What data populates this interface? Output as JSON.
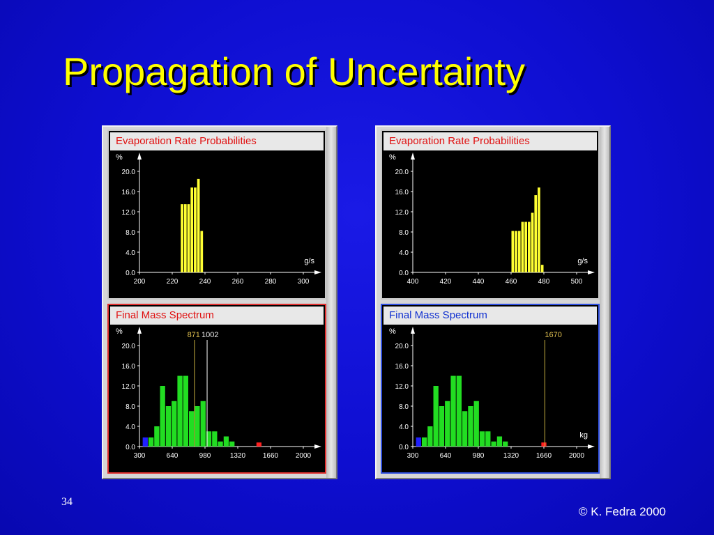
{
  "slide": {
    "title": "Propagation of Uncertainty",
    "page_number": "34",
    "copyright": "© K. Fedra 2000"
  },
  "colors": {
    "background": "#0e0ed0",
    "title": "#ffff00",
    "evaporation_bar": "#ffff33",
    "mass_bar": "#22dd22",
    "low_marker": "#2020ff",
    "high_marker": "#ff2020",
    "marker_line_yellow": "#c8b040",
    "marker_line_white": "#ffffff"
  },
  "chart_data": [
    {
      "type": "bar",
      "panel": "left-top",
      "title": "Evaporation Rate Probabilities",
      "ylabel": "%",
      "xlabel": "g/s",
      "xlim": [
        200,
        300
      ],
      "ylim": [
        0,
        20
      ],
      "x_ticks": [
        "200",
        "220",
        "240",
        "260",
        "280",
        "300"
      ],
      "y_ticks": [
        "0.0",
        "4.0",
        "8.0",
        "12.0",
        "16.0",
        "20.0"
      ],
      "bin_width": 2,
      "bins": [
        {
          "x": 226,
          "value": 13.5
        },
        {
          "x": 228,
          "value": 13.5
        },
        {
          "x": 230,
          "value": 13.5
        },
        {
          "x": 232,
          "value": 16.8
        },
        {
          "x": 234,
          "value": 16.8
        },
        {
          "x": 236,
          "value": 18.5
        },
        {
          "x": 238,
          "value": 8.2
        }
      ],
      "markers": []
    },
    {
      "type": "bar",
      "panel": "left-bottom",
      "title": "Final Mass Spectrum",
      "ylabel": "%",
      "xlabel": "",
      "xlim": [
        300,
        2000
      ],
      "ylim": [
        0,
        20
      ],
      "x_ticks": [
        "300",
        "640",
        "980",
        "1320",
        "1660",
        "2000"
      ],
      "y_ticks": [
        "0.0",
        "4.0",
        "8.0",
        "12.0",
        "16.0",
        "20.0"
      ],
      "bin_width": 60,
      "bins": [
        {
          "x": 360,
          "value": 1.8,
          "color": "low"
        },
        {
          "x": 420,
          "value": 1.8
        },
        {
          "x": 480,
          "value": 4.0
        },
        {
          "x": 540,
          "value": 12.0
        },
        {
          "x": 600,
          "value": 8.0
        },
        {
          "x": 660,
          "value": 9.0
        },
        {
          "x": 720,
          "value": 14.0
        },
        {
          "x": 780,
          "value": 14.0
        },
        {
          "x": 840,
          "value": 7.0
        },
        {
          "x": 900,
          "value": 8.0
        },
        {
          "x": 960,
          "value": 9.0
        },
        {
          "x": 1020,
          "value": 3.0
        },
        {
          "x": 1080,
          "value": 3.0
        },
        {
          "x": 1140,
          "value": 1.0
        },
        {
          "x": 1200,
          "value": 2.0
        },
        {
          "x": 1260,
          "value": 1.0
        },
        {
          "x": 1540,
          "value": 0.8,
          "color": "high"
        }
      ],
      "markers": [
        {
          "x": 871,
          "label": "871",
          "color": "yellow"
        },
        {
          "x": 1002,
          "label": "1002",
          "color": "white"
        }
      ]
    },
    {
      "type": "bar",
      "panel": "right-top",
      "title": "Evaporation Rate Probabilities",
      "ylabel": "%",
      "xlabel": "g/s",
      "xlim": [
        400,
        500
      ],
      "ylim": [
        0,
        20
      ],
      "x_ticks": [
        "400",
        "420",
        "440",
        "460",
        "480",
        "500"
      ],
      "y_ticks": [
        "0.0",
        "4.0",
        "8.0",
        "12.0",
        "16.0",
        "20.0"
      ],
      "bin_width": 2,
      "bins": [
        {
          "x": 461,
          "value": 8.2
        },
        {
          "x": 463,
          "value": 8.2
        },
        {
          "x": 465,
          "value": 8.2
        },
        {
          "x": 467,
          "value": 10.0
        },
        {
          "x": 469,
          "value": 10.0
        },
        {
          "x": 471,
          "value": 10.0
        },
        {
          "x": 473,
          "value": 11.8
        },
        {
          "x": 475,
          "value": 15.3
        },
        {
          "x": 477,
          "value": 16.8
        },
        {
          "x": 479,
          "value": 1.5
        }
      ],
      "markers": []
    },
    {
      "type": "bar",
      "panel": "right-bottom",
      "title": "Final Mass Spectrum",
      "ylabel": "%",
      "xlabel": "kg",
      "xlim": [
        300,
        2000
      ],
      "ylim": [
        0,
        20
      ],
      "x_ticks": [
        "300",
        "640",
        "980",
        "1320",
        "1660",
        "2000"
      ],
      "y_ticks": [
        "0.0",
        "4.0",
        "8.0",
        "12.0",
        "16.0",
        "20.0"
      ],
      "bin_width": 60,
      "bins": [
        {
          "x": 360,
          "value": 1.8,
          "color": "low"
        },
        {
          "x": 420,
          "value": 1.8
        },
        {
          "x": 480,
          "value": 4.0
        },
        {
          "x": 540,
          "value": 12.0
        },
        {
          "x": 600,
          "value": 8.0
        },
        {
          "x": 660,
          "value": 9.0
        },
        {
          "x": 720,
          "value": 14.0
        },
        {
          "x": 780,
          "value": 14.0
        },
        {
          "x": 840,
          "value": 7.0
        },
        {
          "x": 900,
          "value": 8.0
        },
        {
          "x": 960,
          "value": 9.0
        },
        {
          "x": 1020,
          "value": 3.0
        },
        {
          "x": 1080,
          "value": 3.0
        },
        {
          "x": 1140,
          "value": 1.0
        },
        {
          "x": 1200,
          "value": 2.0
        },
        {
          "x": 1260,
          "value": 1.0
        },
        {
          "x": 1660,
          "value": 0.8,
          "color": "high"
        }
      ],
      "markers": [
        {
          "x": 1670,
          "label": "1670",
          "color": "yellow"
        }
      ]
    }
  ]
}
